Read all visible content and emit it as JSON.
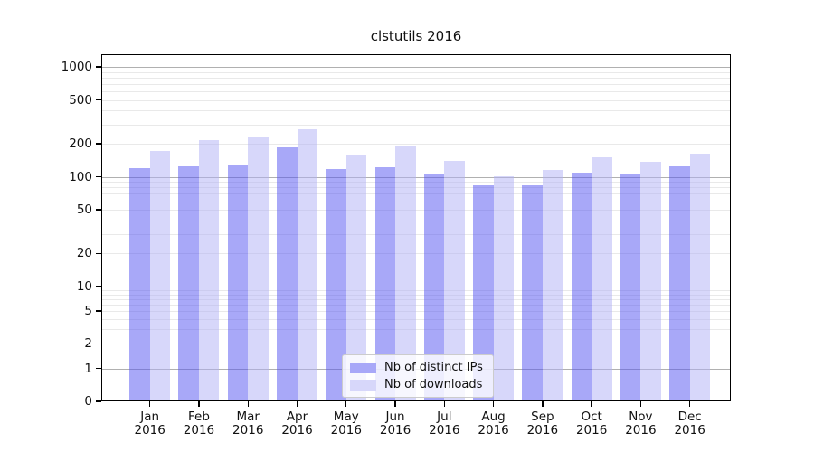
{
  "chart_data": {
    "type": "bar",
    "title": "clstutils 2016",
    "categories": [
      "Jan",
      "Feb",
      "Mar",
      "Apr",
      "May",
      "Jun",
      "Jul",
      "Aug",
      "Sep",
      "Oct",
      "Nov",
      "Dec"
    ],
    "year": "2016",
    "series": [
      {
        "name": "Nb of distinct IPs",
        "color": "rgba(81,81,241,0.5)",
        "swatch_color": "#a8a8f8",
        "values": [
          120,
          124,
          127,
          185,
          117,
          123,
          105,
          84,
          83,
          110,
          105,
          125
        ]
      },
      {
        "name": "Nb of downloads",
        "color": "rgba(175,175,245,0.5)",
        "swatch_color": "#d7d7fa",
        "values": [
          173,
          214,
          228,
          270,
          161,
          193,
          139,
          102,
          115,
          152,
          136,
          164
        ]
      }
    ],
    "y_ticks": [
      1000,
      500,
      200,
      100,
      50,
      20,
      10,
      5,
      2,
      1,
      0
    ],
    "yscale": "symlog",
    "ylim": [
      0,
      1300
    ],
    "xlabel": "",
    "ylabel": "",
    "grid": true,
    "legend_position": "lower center"
  },
  "appearance": {
    "background": "#ffffff",
    "axis_color": "#000000",
    "text_color": "#111111",
    "major_grid_color": "#b0b0b0",
    "minor_grid_color": "#e9e9e9",
    "legend_bg": "rgba(255,255,255,0.8)",
    "legend_border": "#cccccc"
  }
}
